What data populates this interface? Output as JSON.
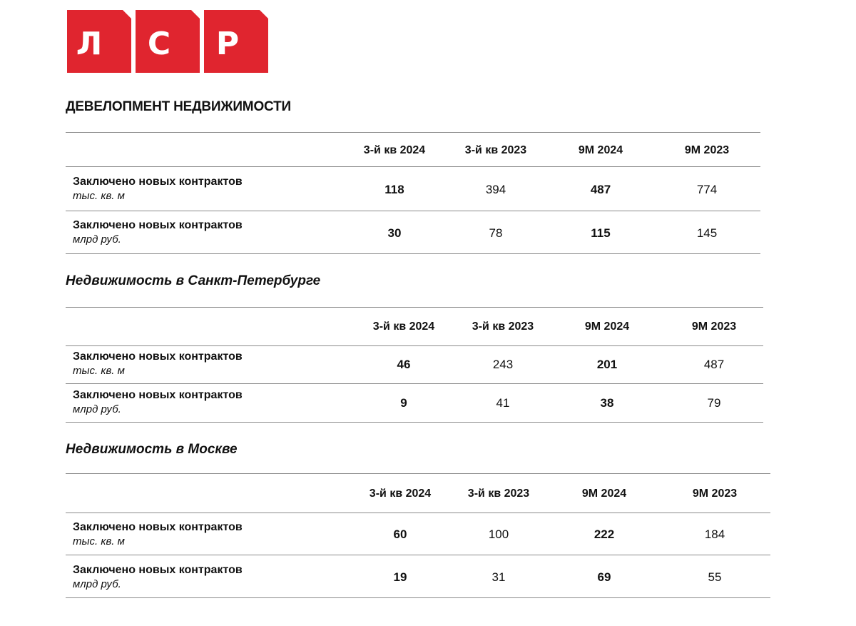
{
  "brand": {
    "letters": [
      "Л",
      "С",
      "Р"
    ],
    "color": "#e0252f"
  },
  "page_title": "ДЕВЕЛОПМЕНТ НЕДВИЖИМОСТИ",
  "sections": [
    {
      "title": "",
      "columns": [
        "3-й кв 2024",
        "3-й кв 2023",
        "9М 2024",
        "9М 2023"
      ],
      "rows": [
        {
          "label": "Заключено новых контрактов",
          "unit": "тыс. кв. м",
          "values": [
            "118",
            "394",
            "487",
            "774"
          ]
        },
        {
          "label": "Заключено новых контрактов",
          "unit": "млрд руб.",
          "values": [
            "30",
            "78",
            "115",
            "145"
          ]
        }
      ]
    },
    {
      "title": "Недвижимость в Санкт-Петербурге",
      "columns": [
        "3-й кв 2024",
        "3-й кв 2023",
        "9М 2024",
        "9М 2023"
      ],
      "rows": [
        {
          "label": "Заключено новых контрактов",
          "unit": "тыс. кв. м",
          "values": [
            "46",
            "243",
            "201",
            "487"
          ]
        },
        {
          "label": "Заключено новых контрактов",
          "unit": "млрд руб.",
          "values": [
            "9",
            "41",
            "38",
            "79"
          ]
        }
      ]
    },
    {
      "title": "Недвижимость в Москве",
      "columns": [
        "3-й кв 2024",
        "3-й кв 2023",
        "9М 2024",
        "9М 2023"
      ],
      "rows": [
        {
          "label": "Заключено новых контрактов",
          "unit": "тыс. кв. м",
          "values": [
            "60",
            "100",
            "222",
            "184"
          ]
        },
        {
          "label": "Заключено новых контрактов",
          "unit": "млрд руб.",
          "values": [
            "19",
            "31",
            "69",
            "55"
          ]
        }
      ]
    }
  ]
}
